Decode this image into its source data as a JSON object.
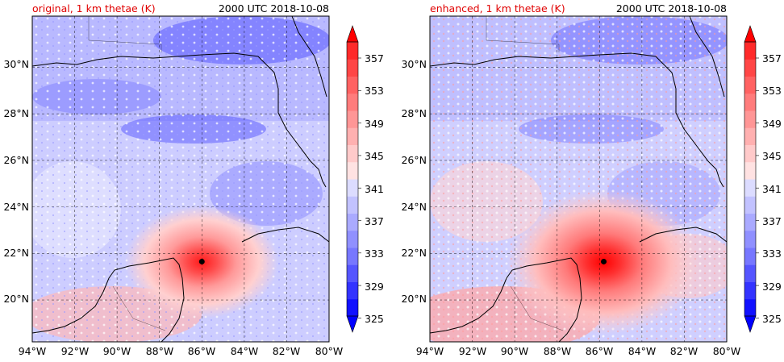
{
  "panels": [
    {
      "title_left": "original, 1 km thetae (K)",
      "title_right": "2000 UTC 2018-10-08",
      "storm_center": {
        "lon": -86.0,
        "lat": 21.65
      }
    },
    {
      "title_left": "enhanced, 1 km thetae (K)",
      "title_right": "2000 UTC 2018-10-08",
      "storm_center": {
        "lon": -85.8,
        "lat": 21.65
      }
    }
  ],
  "map": {
    "lon_range": [
      -94,
      -80
    ],
    "lat_range": [
      18.2,
      32.2
    ],
    "lon_ticks": [
      "94°W",
      "92°W",
      "90°W",
      "88°W",
      "86°W",
      "84°W",
      "82°W",
      "80°W"
    ],
    "lat_ticks": [
      "20°N",
      "22°N",
      "24°N",
      "26°N",
      "28°N",
      "30°N"
    ],
    "lon_tick_values": [
      -94,
      -92,
      -90,
      -88,
      -86,
      -84,
      -82,
      -80
    ],
    "lat_tick_values": [
      20,
      22,
      24,
      26,
      28,
      30
    ],
    "gridlines": "dashed"
  },
  "colorbar": {
    "labels": [
      "357",
      "353",
      "349",
      "345",
      "341",
      "337",
      "333",
      "329",
      "325"
    ],
    "levels": [
      325,
      327,
      329,
      331,
      333,
      335,
      337,
      339,
      341,
      343,
      345,
      347,
      349,
      351,
      353,
      355,
      357
    ],
    "extend": "both",
    "colors": [
      "#1111ff",
      "#3333ff",
      "#5555ff",
      "#7777ff",
      "#9090ff",
      "#aaaaff",
      "#c2c2ff",
      "#dcdcff",
      "#ffe2e2",
      "#ffcaca",
      "#ffb0b0",
      "#ff9696",
      "#ff7c7c",
      "#ff6262",
      "#ff4646",
      "#ff2a2a"
    ],
    "under_color": "#0000ff",
    "over_color": "#ff0000"
  },
  "colors": {
    "title_accent": "#e00000",
    "background_field": "#c8c8ff",
    "storm_core": "#ff4040"
  }
}
